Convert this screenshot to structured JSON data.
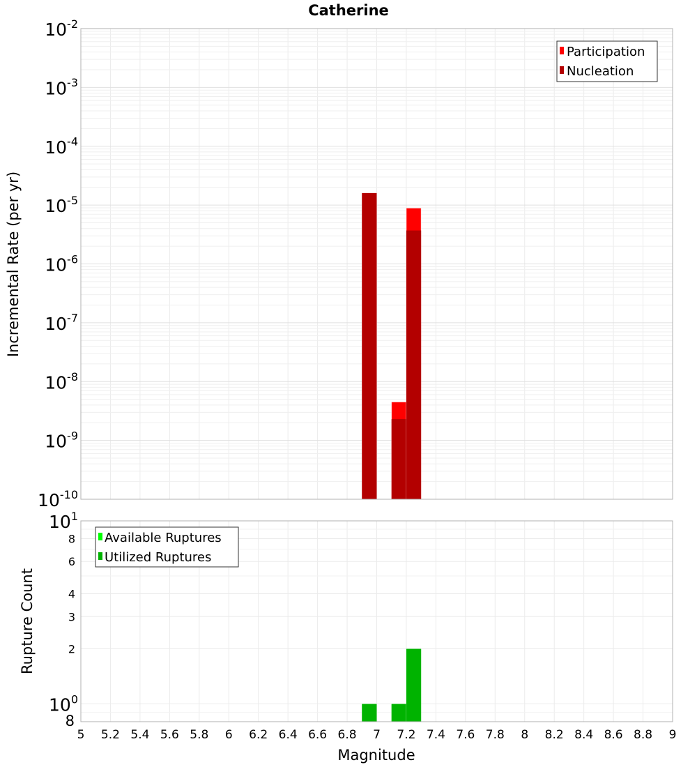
{
  "chart_data": [
    {
      "type": "bar",
      "title": "Catherine",
      "xlabel": "Magnitude",
      "ylabel": "Incremental Rate (per yr)",
      "yscale": "log",
      "ylim": [
        1e-10,
        0.01
      ],
      "xlim": [
        5,
        9
      ],
      "bar_width": 0.1,
      "legend": {
        "position": "top-right",
        "entries": [
          "Participation",
          "Nucleation"
        ]
      },
      "colors": {
        "Participation": "#ff0000",
        "Nucleation": "#b30000"
      },
      "x": [
        6.95,
        7.15,
        7.25
      ],
      "series": [
        {
          "name": "Participation",
          "values": [
            1.6e-05,
            4.5e-09,
            8.9e-06
          ]
        },
        {
          "name": "Nucleation",
          "values": [
            1.6e-05,
            2.3e-09,
            3.7e-06
          ]
        }
      ],
      "ytick_exponents": [
        "-10",
        "-9",
        "-8",
        "-7",
        "-6",
        "-5",
        "-4",
        "-3",
        "-2"
      ]
    },
    {
      "type": "bar",
      "xlabel": "Magnitude",
      "ylabel": "Rupture Count",
      "yscale": "log",
      "ylim": [
        0.8,
        10
      ],
      "xlim": [
        5,
        9
      ],
      "bar_width": 0.1,
      "legend": {
        "position": "top-left",
        "entries": [
          "Available Ruptures",
          "Utilized Ruptures"
        ]
      },
      "colors": {
        "Available Ruptures": "#00ff00",
        "Utilized Ruptures": "#00b300"
      },
      "x": [
        6.95,
        7.15,
        7.25
      ],
      "series": [
        {
          "name": "Available Ruptures",
          "values": [
            1,
            1,
            2
          ]
        },
        {
          "name": "Utilized Ruptures",
          "values": [
            1,
            1,
            2
          ]
        }
      ],
      "yticks": [
        {
          "value": 10,
          "base": "10",
          "exp": "1"
        },
        {
          "value": 8,
          "label": "8"
        },
        {
          "value": 6,
          "label": "6"
        },
        {
          "value": 4,
          "label": "4"
        },
        {
          "value": 3,
          "label": "3"
        },
        {
          "value": 2,
          "label": "2"
        },
        {
          "value": 1,
          "base": "10",
          "exp": "0"
        },
        {
          "value": 0.8,
          "label": "8"
        }
      ],
      "xticks": [
        "5",
        "5.2",
        "5.4",
        "5.6",
        "5.8",
        "6",
        "6.2",
        "6.4",
        "6.6",
        "6.8",
        "7",
        "7.2",
        "7.4",
        "7.6",
        "7.8",
        "8",
        "8.2",
        "8.4",
        "8.6",
        "8.8",
        "9"
      ]
    }
  ]
}
